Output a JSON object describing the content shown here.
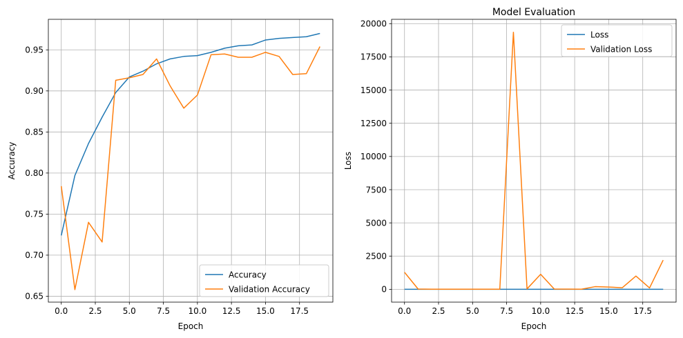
{
  "chart_data": [
    {
      "type": "line",
      "title": "",
      "xlabel": "Epoch",
      "ylabel": "Accuracy",
      "xlim": [
        -0.95,
        19.95
      ],
      "ylim": [
        0.6428,
        0.9872
      ],
      "xticks": [
        0,
        2.5,
        5,
        7.5,
        10,
        12.5,
        15,
        17.5
      ],
      "xtick_labels": [
        "0.0",
        "2.5",
        "5.0",
        "7.5",
        "10.0",
        "12.5",
        "15.0",
        "17.5"
      ],
      "yticks": [
        0.65,
        0.7,
        0.75,
        0.8,
        0.85,
        0.9,
        0.95
      ],
      "ytick_labels": [
        "0.65",
        "0.70",
        "0.75",
        "0.80",
        "0.85",
        "0.90",
        "0.95"
      ],
      "grid": true,
      "legend_position": "lower-right",
      "x": [
        0,
        1,
        2,
        3,
        4,
        5,
        6,
        7,
        8,
        9,
        10,
        11,
        12,
        13,
        14,
        15,
        16,
        17,
        18,
        19
      ],
      "series": [
        {
          "name": "Accuracy",
          "color": "#1f77b4",
          "values": [
            0.724,
            0.797,
            0.836,
            0.868,
            0.898,
            0.917,
            0.924,
            0.933,
            0.939,
            0.942,
            0.943,
            0.947,
            0.952,
            0.955,
            0.956,
            0.962,
            0.964,
            0.965,
            0.966,
            0.97
          ]
        },
        {
          "name": "Validation Accuracy",
          "color": "#ff7f0e",
          "values": [
            0.784,
            0.658,
            0.74,
            0.716,
            0.913,
            0.916,
            0.92,
            0.939,
            0.906,
            0.879,
            0.895,
            0.944,
            0.945,
            0.941,
            0.941,
            0.947,
            0.942,
            0.92,
            0.921,
            0.954
          ]
        }
      ]
    },
    {
      "type": "line",
      "title": "Model Evaluation",
      "xlabel": "Epoch",
      "ylabel": "Loss",
      "xlim": [
        -0.95,
        19.95
      ],
      "ylim": [
        -966,
        20326
      ],
      "xticks": [
        0,
        2.5,
        5,
        7.5,
        10,
        12.5,
        15,
        17.5
      ],
      "xtick_labels": [
        "0.0",
        "2.5",
        "5.0",
        "7.5",
        "10.0",
        "12.5",
        "15.0",
        "17.5"
      ],
      "yticks": [
        0,
        2500,
        5000,
        7500,
        10000,
        12500,
        15000,
        17500,
        20000
      ],
      "ytick_labels": [
        "0",
        "2500",
        "5000",
        "7500",
        "10000",
        "12500",
        "15000",
        "17500",
        "20000"
      ],
      "grid": true,
      "legend_position": "upper-right",
      "x": [
        0,
        1,
        2,
        3,
        4,
        5,
        6,
        7,
        8,
        9,
        10,
        11,
        12,
        13,
        14,
        15,
        16,
        17,
        18,
        19
      ],
      "series": [
        {
          "name": "Loss",
          "color": "#1f77b4",
          "values": [
            0.7,
            0.5,
            0.4,
            0.35,
            0.3,
            0.25,
            0.22,
            0.2,
            0.18,
            0.17,
            0.16,
            0.15,
            0.14,
            0.13,
            0.12,
            0.11,
            0.1,
            0.1,
            0.09,
            0.08
          ]
        },
        {
          "name": "Validation Loss",
          "color": "#ff7f0e",
          "values": [
            1280,
            20,
            10,
            8,
            6,
            5,
            5,
            10,
            19350,
            30,
            1130,
            20,
            15,
            10,
            200,
            170,
            120,
            1000,
            100,
            2200
          ]
        }
      ]
    }
  ]
}
